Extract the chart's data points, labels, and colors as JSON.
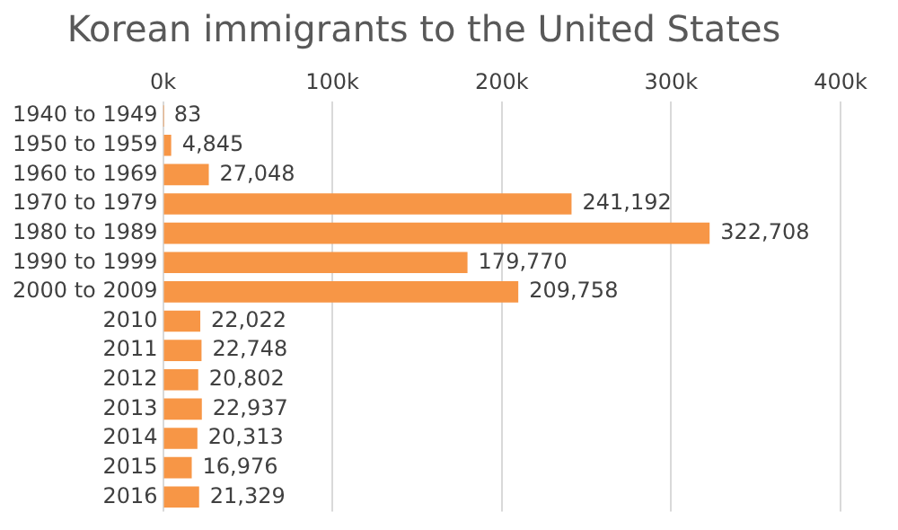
{
  "chart_data": {
    "type": "bar",
    "orientation": "horizontal",
    "title": "Korean immigrants to the United States",
    "categories": [
      "1940 to 1949",
      "1950 to 1959",
      "1960 to 1969",
      "1970 to 1979",
      "1980 to 1989",
      "1990 to 1999",
      "2000 to 2009",
      "2010",
      "2011",
      "2012",
      "2013",
      "2014",
      "2015",
      "2016"
    ],
    "values": [
      83,
      4845,
      27048,
      241192,
      322708,
      179770,
      209758,
      22022,
      22748,
      20802,
      22937,
      20313,
      16976,
      21329
    ],
    "value_labels": [
      "83",
      "4,845",
      "27,048",
      "241,192",
      "322,708",
      "179,770",
      "209,758",
      "22,022",
      "22,748",
      "20,802",
      "22,937",
      "20,313",
      "16,976",
      "21,329"
    ],
    "color": "#f79646",
    "xlim": [
      0,
      400000
    ],
    "xticks": [
      {
        "value": 0,
        "label": "0k"
      },
      {
        "value": 100000,
        "label": "100k"
      },
      {
        "value": 200000,
        "label": "200k"
      },
      {
        "value": 300000,
        "label": "300k"
      },
      {
        "value": 400000,
        "label": "400k"
      }
    ],
    "grid": "x"
  }
}
